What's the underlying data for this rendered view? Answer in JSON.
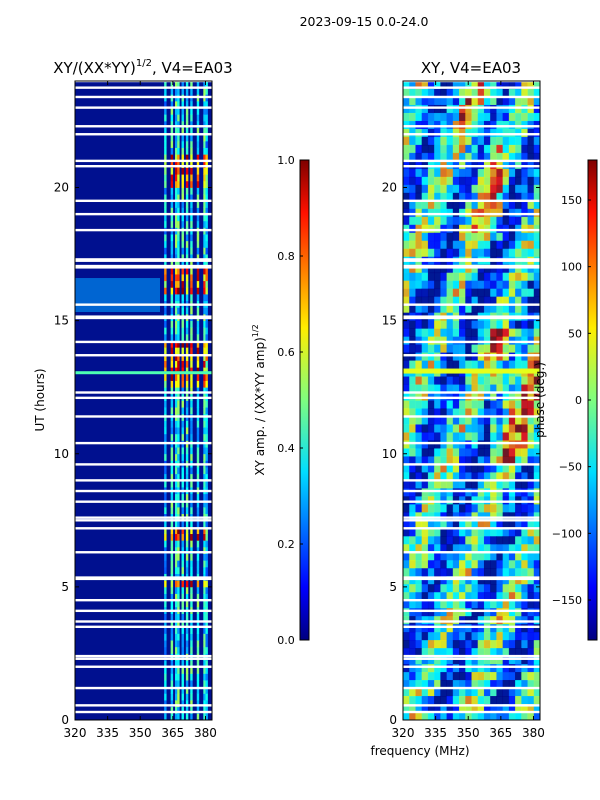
{
  "figure": {
    "suptitle": "2023-09-15 0.0-24.0",
    "xlabel": "frequency (MHz)"
  },
  "chart_data": [
    {
      "type": "heatmap",
      "title_main": "XY/(XX*YY)",
      "title_sup": "1/2",
      "title_tail": ", V4=EA03",
      "xlabel": "",
      "ylabel": "UT (hours)",
      "xlim": [
        320,
        383
      ],
      "ylim": [
        0,
        24
      ],
      "xticks": [
        "320",
        "335",
        "350",
        "365",
        "380"
      ],
      "xtick_values": [
        320,
        335,
        350,
        365,
        380
      ],
      "yticks": [
        "0",
        "5",
        "10",
        "15",
        "20"
      ],
      "ytick_values": [
        0,
        5,
        10,
        15,
        20
      ],
      "background_color": "#00108f",
      "colormap": "jet",
      "colorbar": {
        "label_main": "XY amp. / (XX*YY amp)",
        "label_sup": "1/2",
        "range": [
          0.0,
          1.0
        ],
        "ticks": [
          "0.0",
          "0.2",
          "0.4",
          "0.6",
          "0.8",
          "1.0"
        ],
        "tick_values": [
          0.0,
          0.2,
          0.4,
          0.6,
          0.8,
          1.0
        ]
      },
      "flagged_hours": [
        0.3,
        0.55,
        1.2,
        2.0,
        2.3,
        2.4,
        3.5,
        3.7,
        4.1,
        4.5,
        5.3,
        5.35,
        6.3,
        7.2,
        7.5,
        7.6,
        8.2,
        8.6,
        9.0,
        9.6,
        10.4,
        11.4,
        12.1,
        12.3,
        13.7,
        14.2,
        15.1,
        15.15,
        15.6,
        17.0,
        17.05,
        17.25,
        17.3,
        18.4,
        19.0,
        19.5,
        20.8,
        21.0,
        22.0,
        22.3,
        23.0,
        23.4,
        23.75,
        24.0
      ],
      "rfi_channels_mhz": [
        361,
        364,
        366,
        367,
        369,
        371,
        373,
        376,
        379,
        380
      ],
      "strong_rfi_hours": [
        [
          6.6,
          7.1
        ],
        [
          12.4,
          14.2
        ],
        [
          15.8,
          16.8
        ],
        [
          4.8,
          5.1
        ],
        [
          20.0,
          21.0
        ]
      ]
    },
    {
      "type": "heatmap",
      "title_main": "XY, V4=EA03",
      "title_sup": "",
      "title_tail": "",
      "xlabel": "frequency (MHz)",
      "ylabel": "",
      "xlim": [
        320,
        383
      ],
      "ylim": [
        0,
        24
      ],
      "xticks": [
        "320",
        "335",
        "350",
        "365",
        "380"
      ],
      "xtick_values": [
        320,
        335,
        350,
        365,
        380
      ],
      "yticks": [
        "0",
        "5",
        "10",
        "15",
        "20"
      ],
      "ytick_values": [
        0,
        5,
        10,
        15,
        20
      ],
      "background_color": "#00a0ff",
      "colormap": "jet",
      "colorbar": {
        "label_main": "phase (deg.)",
        "label_sup": "",
        "range": [
          -180,
          180
        ],
        "ticks": [
          "−150",
          "−100",
          "−50",
          "0",
          "50",
          "100",
          "150"
        ],
        "tick_values": [
          -150,
          -100,
          -50,
          0,
          50,
          100,
          150
        ]
      },
      "flagged_hours": [
        0.3,
        0.55,
        1.2,
        2.0,
        2.3,
        2.4,
        3.5,
        3.7,
        4.1,
        4.5,
        5.3,
        5.35,
        6.3,
        7.2,
        7.5,
        7.6,
        8.2,
        8.6,
        9.0,
        9.6,
        10.4,
        11.4,
        12.1,
        12.3,
        13.7,
        14.2,
        15.1,
        15.15,
        15.6,
        17.0,
        17.05,
        17.25,
        17.3,
        18.4,
        19.0,
        19.5,
        20.8,
        21.0,
        22.0,
        22.3,
        23.0,
        23.4,
        23.75,
        24.0
      ]
    }
  ]
}
